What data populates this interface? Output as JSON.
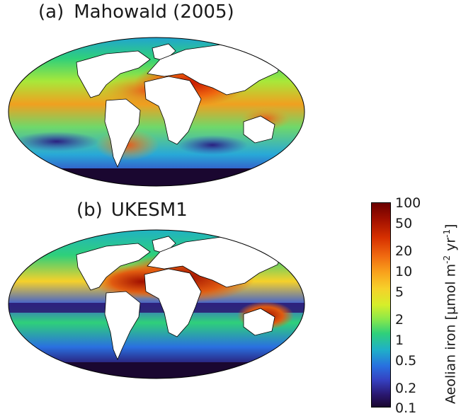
{
  "panels": [
    {
      "tag": "(a)",
      "title": "Mahowald (2005)"
    },
    {
      "tag": "(b)",
      "title": "UKESM1"
    }
  ],
  "colorbar": {
    "label_prefix": "Aeolian iron [µmol m",
    "label_exp1": "-2",
    "label_mid": " yr",
    "label_exp2": "-1",
    "label_suffix": "]",
    "ticks": [
      "100",
      "50",
      "20",
      "10",
      "5",
      "2",
      "1",
      "0.5",
      "0.2",
      "0.1"
    ],
    "scale": "log",
    "range": [
      0.1,
      100
    ],
    "colormap": [
      "#1a0730",
      "#3540c0",
      "#1fb0c8",
      "#2fd07a",
      "#d6ee2a",
      "#f6d12a",
      "#f06a10",
      "#a11000",
      "#6b0000"
    ]
  }
}
